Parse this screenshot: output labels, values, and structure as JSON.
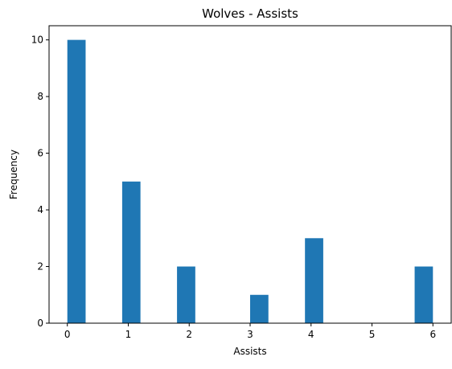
{
  "chart_data": {
    "type": "bar",
    "title": "Wolves - Assists",
    "xlabel": "Assists",
    "ylabel": "Frequency",
    "histogram": true,
    "bins": [
      {
        "start": 0.0,
        "end": 0.3,
        "count": 10
      },
      {
        "start": 0.9,
        "end": 1.2,
        "count": 5
      },
      {
        "start": 1.8,
        "end": 2.1,
        "count": 2
      },
      {
        "start": 2.7,
        "end": 3.0,
        "count": 0
      },
      {
        "start": 3.0,
        "end": 3.3,
        "count": 1
      },
      {
        "start": 3.9,
        "end": 4.2,
        "count": 3
      },
      {
        "start": 5.7,
        "end": 6.0,
        "count": 2
      }
    ],
    "x_ticks": [
      0,
      1,
      2,
      3,
      4,
      5,
      6
    ],
    "y_ticks": [
      0,
      2,
      4,
      6,
      8,
      10
    ],
    "xlim": [
      -0.3,
      6.3
    ],
    "ylim": [
      0,
      10.5
    ],
    "grid": false,
    "legend": "none",
    "bar_color": "#1f77b4"
  }
}
